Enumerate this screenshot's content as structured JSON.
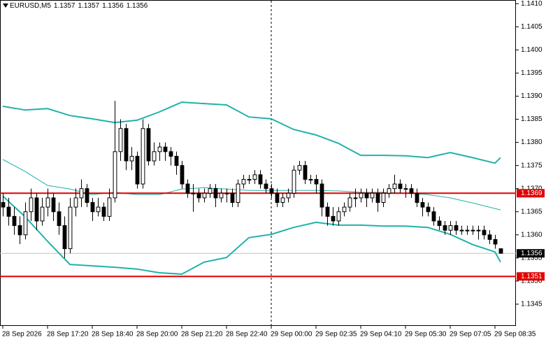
{
  "chart_data": {
    "type": "candlestick",
    "title": "EURUSD,M5",
    "quote": [
      1.1357,
      1.1357,
      1.1356,
      1.1356
    ],
    "up_color": "#ffffff",
    "down_color": "#000000",
    "candles": [
      [
        1.1367,
        1.1369,
        1.1364,
        1.1366
      ],
      [
        1.1366,
        1.1368,
        1.1362,
        1.1364
      ],
      [
        1.1364,
        1.1366,
        1.136,
        1.1362
      ],
      [
        1.1362,
        1.1364,
        1.1358,
        1.136
      ],
      [
        1.136,
        1.1367,
        1.1359,
        1.1365
      ],
      [
        1.1365,
        1.137,
        1.1363,
        1.1368
      ],
      [
        1.1368,
        1.1369,
        1.1361,
        1.1363
      ],
      [
        1.1363,
        1.1368,
        1.1362,
        1.1366
      ],
      [
        1.1366,
        1.137,
        1.1364,
        1.1368
      ],
      [
        1.1368,
        1.1369,
        1.1363,
        1.1365
      ],
      [
        1.1365,
        1.1367,
        1.136,
        1.1362
      ],
      [
        1.1362,
        1.1364,
        1.1355,
        1.1357
      ],
      [
        1.1357,
        1.1368,
        1.1356,
        1.1366
      ],
      [
        1.1366,
        1.137,
        1.1364,
        1.1368
      ],
      [
        1.1368,
        1.1372,
        1.1366,
        1.137
      ],
      [
        1.137,
        1.1371,
        1.1366,
        1.1367
      ],
      [
        1.1367,
        1.1368,
        1.1363,
        1.1365
      ],
      [
        1.1365,
        1.1368,
        1.1364,
        1.1366
      ],
      [
        1.1366,
        1.1367,
        1.1363,
        1.1364
      ],
      [
        1.1364,
        1.137,
        1.1363,
        1.1368
      ],
      [
        1.1368,
        1.1389,
        1.1367,
        1.1378
      ],
      [
        1.1378,
        1.1385,
        1.1376,
        1.1383
      ],
      [
        1.1383,
        1.1384,
        1.1374,
        1.1376
      ],
      [
        1.1376,
        1.1379,
        1.1374,
        1.1377
      ],
      [
        1.1377,
        1.1378,
        1.137,
        1.1371
      ],
      [
        1.1371,
        1.1385,
        1.137,
        1.1383
      ],
      [
        1.1383,
        1.1384,
        1.1375,
        1.1376
      ],
      [
        1.1376,
        1.138,
        1.1375,
        1.1378
      ],
      [
        1.1378,
        1.138,
        1.1376,
        1.1379
      ],
      [
        1.1379,
        1.138,
        1.1376,
        1.1378
      ],
      [
        1.1378,
        1.1379,
        1.1375,
        1.1377
      ],
      [
        1.1377,
        1.1378,
        1.1373,
        1.1375
      ],
      [
        1.1375,
        1.1376,
        1.137,
        1.1371
      ],
      [
        1.1371,
        1.1372,
        1.1368,
        1.1369
      ],
      [
        1.1369,
        1.1371,
        1.1365,
        1.1369
      ],
      [
        1.1369,
        1.137,
        1.1367,
        1.1368
      ],
      [
        1.1368,
        1.137,
        1.1367,
        1.1369
      ],
      [
        1.1369,
        1.1371,
        1.1368,
        1.137
      ],
      [
        1.137,
        1.1371,
        1.1366,
        1.1368
      ],
      [
        1.1368,
        1.137,
        1.1367,
        1.1369
      ],
      [
        1.1369,
        1.137,
        1.1367,
        1.1369
      ],
      [
        1.1369,
        1.137,
        1.1366,
        1.1367
      ],
      [
        1.1367,
        1.1372,
        1.1366,
        1.1371
      ],
      [
        1.1371,
        1.1373,
        1.137,
        1.1372
      ],
      [
        1.1372,
        1.1373,
        1.1371,
        1.1372
      ],
      [
        1.1372,
        1.1374,
        1.1371,
        1.1373
      ],
      [
        1.1373,
        1.1374,
        1.137,
        1.1371
      ],
      [
        1.1371,
        1.1372,
        1.1369,
        1.137
      ],
      [
        1.137,
        1.1371,
        1.1368,
        1.1369
      ],
      [
        1.1369,
        1.137,
        1.1366,
        1.1367
      ],
      [
        1.1367,
        1.1369,
        1.1366,
        1.1368
      ],
      [
        1.1368,
        1.137,
        1.1367,
        1.1369
      ],
      [
        1.1369,
        1.1375,
        1.1368,
        1.1374
      ],
      [
        1.1374,
        1.1376,
        1.1373,
        1.1375
      ],
      [
        1.1375,
        1.1376,
        1.1371,
        1.1372
      ],
      [
        1.1372,
        1.1373,
        1.1371,
        1.1372
      ],
      [
        1.1372,
        1.1373,
        1.1369,
        1.1371
      ],
      [
        1.1371,
        1.1372,
        1.1364,
        1.1366
      ],
      [
        1.1366,
        1.1367,
        1.1362,
        1.1364
      ],
      [
        1.1364,
        1.1366,
        1.1362,
        1.1363
      ],
      [
        1.1363,
        1.1366,
        1.1362,
        1.1365
      ],
      [
        1.1365,
        1.1367,
        1.1364,
        1.1366
      ],
      [
        1.1366,
        1.1369,
        1.1365,
        1.1368
      ],
      [
        1.1368,
        1.137,
        1.1366,
        1.1368
      ],
      [
        1.1368,
        1.137,
        1.1367,
        1.1369
      ],
      [
        1.1369,
        1.137,
        1.1366,
        1.1368
      ],
      [
        1.1368,
        1.137,
        1.1367,
        1.1369
      ],
      [
        1.1369,
        1.137,
        1.1365,
        1.1367
      ],
      [
        1.1367,
        1.137,
        1.1366,
        1.1369
      ],
      [
        1.1369,
        1.1371,
        1.1368,
        1.137
      ],
      [
        1.137,
        1.1373,
        1.1369,
        1.1371
      ],
      [
        1.1371,
        1.1372,
        1.1369,
        1.137
      ],
      [
        1.137,
        1.1371,
        1.1368,
        1.137
      ],
      [
        1.137,
        1.1371,
        1.1368,
        1.1369
      ],
      [
        1.1369,
        1.137,
        1.1366,
        1.1367
      ],
      [
        1.1367,
        1.1368,
        1.1364,
        1.1366
      ],
      [
        1.1366,
        1.1367,
        1.1364,
        1.1365
      ],
      [
        1.1365,
        1.1366,
        1.1362,
        1.1363
      ],
      [
        1.1363,
        1.1364,
        1.1361,
        1.1362
      ],
      [
        1.1362,
        1.1363,
        1.136,
        1.1361
      ],
      [
        1.1361,
        1.1363,
        1.136,
        1.1362
      ],
      [
        1.1362,
        1.1363,
        1.136,
        1.1361
      ],
      [
        1.1361,
        1.1362,
        1.136,
        1.1361
      ],
      [
        1.1361,
        1.1362,
        1.136,
        1.1361
      ],
      [
        1.1361,
        1.1362,
        1.136,
        1.1361
      ],
      [
        1.1361,
        1.1362,
        1.1359,
        1.1361
      ],
      [
        1.1361,
        1.1362,
        1.1359,
        1.136
      ],
      [
        1.136,
        1.1361,
        1.1358,
        1.1359
      ],
      [
        1.1359,
        1.136,
        1.1357,
        1.1358
      ],
      [
        1.1357,
        1.1357,
        1.1356,
        1.1356
      ]
    ],
    "xlim": [
      -0.5,
      91.75
    ],
    "xticks": [
      {
        "value": 0,
        "label": "28 Sep 2026"
      },
      {
        "value": 8,
        "label": "28 Sep 17:20"
      },
      {
        "value": 16,
        "label": "28 Sep 18:40"
      },
      {
        "value": 24,
        "label": "28 Sep 20:00"
      },
      {
        "value": 32,
        "label": "28 Sep 21:20"
      },
      {
        "value": 40,
        "label": "28 Sep 22:40"
      },
      {
        "value": 48,
        "label": "29 Sep 00:00"
      },
      {
        "value": 56,
        "label": "29 Sep 02:35"
      },
      {
        "value": 64,
        "label": "29 Sep 04:10"
      },
      {
        "value": 72,
        "label": "29 Sep 05:30"
      },
      {
        "value": 80,
        "label": "29 Sep 07:05"
      },
      {
        "value": 88,
        "label": "29 Sep 08:35"
      }
    ],
    "ylim": [
      1.13403,
      1.14108
    ],
    "yticks": [
      {
        "value": 1.141,
        "label": "1.1410"
      },
      1.1405,
      {
        "value": 1.14,
        "label": "1.1400"
      },
      1.1395,
      {
        "value": 1.139,
        "label": "1.1390"
      },
      1.1385,
      {
        "value": 1.138,
        "label": "1.1380"
      },
      1.1375,
      {
        "value": 1.137,
        "label": "1.1370"
      },
      1.1365,
      {
        "value": 1.136,
        "label": "1.1360"
      },
      1.1355,
      {
        "value": 1.135,
        "label": "1.1350"
      },
      1.1345
    ],
    "bands": {
      "color": "#20b2aa",
      "x": [
        0,
        4,
        8,
        12,
        16,
        20,
        24,
        28,
        32,
        36,
        40,
        44,
        48,
        52,
        56,
        60,
        64,
        68,
        72,
        76,
        80,
        84,
        88,
        89
      ],
      "upper": [
        1.13878,
        1.1387,
        1.13873,
        1.13858,
        1.13851,
        1.13843,
        1.13848,
        1.13866,
        1.13887,
        1.13884,
        1.13881,
        1.13855,
        1.13851,
        1.13828,
        1.13816,
        1.13798,
        1.13772,
        1.13772,
        1.13771,
        1.13767,
        1.13778,
        1.13767,
        1.13755,
        1.13767
      ],
      "middle": [
        1.13763,
        1.13737,
        1.13707,
        1.13699,
        1.13687,
        1.13692,
        1.13687,
        1.13687,
        1.13699,
        1.13702,
        1.13699,
        1.13696,
        1.13696,
        1.13696,
        1.13696,
        1.13695,
        1.13692,
        1.13692,
        1.1369,
        1.13687,
        1.1368,
        1.13669,
        1.13657,
        1.13654
      ],
      "lower": [
        1.13684,
        1.13639,
        1.13586,
        1.13536,
        1.13533,
        1.1353,
        1.13526,
        1.13518,
        1.13515,
        1.13541,
        1.13551,
        1.13594,
        1.13601,
        1.13616,
        1.13627,
        1.13621,
        1.13621,
        1.13619,
        1.13619,
        1.13616,
        1.13601,
        1.13579,
        1.13563,
        1.13541
      ]
    },
    "levels": [
      {
        "value": 1.1369,
        "color": "#e00000"
      },
      {
        "value": 1.1351,
        "color": "#e00000"
      }
    ],
    "last_price": 1.1356,
    "separator": 48
  }
}
